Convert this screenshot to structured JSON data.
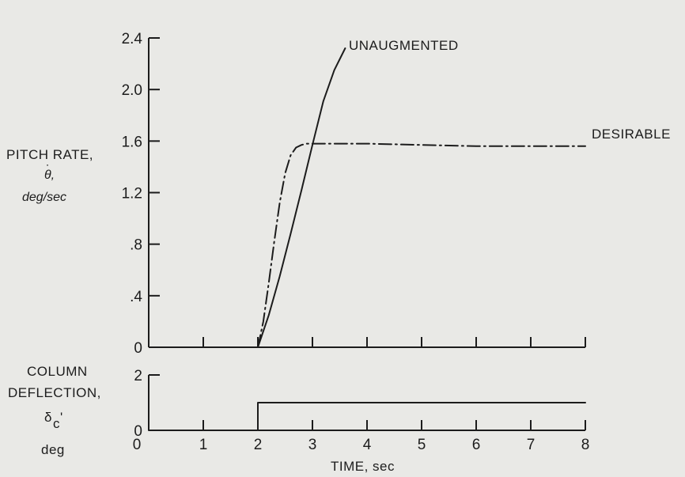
{
  "chart_data": [
    {
      "type": "line",
      "ylabel_lines": [
        "PITCH RATE,",
        "θ,",
        "deg/sec"
      ],
      "ylabel_dot": "˙",
      "xlim": [
        0,
        8
      ],
      "ylim": [
        0,
        2.4
      ],
      "y_ticks": [
        0,
        0.4,
        0.8,
        1.2,
        1.6,
        2.0,
        2.4
      ],
      "y_tick_labels": [
        "0",
        ".4",
        ".8",
        "1.2",
        "1.6",
        "2.0",
        "2.4"
      ],
      "x_ticks": [
        1,
        2,
        3,
        4,
        5,
        6,
        7,
        8
      ],
      "series": [
        {
          "name": "UNAUGMENTED",
          "style": "solid",
          "x": [
            2.0,
            2.2,
            2.4,
            2.6,
            2.8,
            3.0,
            3.2,
            3.4,
            3.6
          ],
          "y": [
            0.0,
            0.25,
            0.55,
            0.88,
            1.22,
            1.57,
            1.91,
            2.15,
            2.32
          ]
        },
        {
          "name": "DESIRABLE",
          "style": "dash-dot",
          "x": [
            2.0,
            2.1,
            2.2,
            2.3,
            2.4,
            2.5,
            2.6,
            2.7,
            2.8,
            2.9,
            3.0,
            3.5,
            4.0,
            5.0,
            6.0,
            7.0,
            8.0
          ],
          "y": [
            0.0,
            0.2,
            0.5,
            0.82,
            1.12,
            1.35,
            1.49,
            1.55,
            1.57,
            1.58,
            1.58,
            1.58,
            1.58,
            1.57,
            1.56,
            1.56,
            1.56
          ]
        }
      ]
    },
    {
      "type": "line",
      "ylabel_lines": [
        "COLUMN",
        "DEFLECTION,",
        "δ",
        "c",
        "'",
        "deg"
      ],
      "xlabel": "TIME, sec",
      "xlim": [
        0,
        8
      ],
      "ylim": [
        0,
        2
      ],
      "y_ticks": [
        0,
        2
      ],
      "y_tick_labels": [
        "0",
        "2"
      ],
      "x_ticks": [
        0,
        1,
        2,
        3,
        4,
        5,
        6,
        7,
        8
      ],
      "x_tick_labels": [
        "0",
        "1",
        "2",
        "3",
        "4",
        "5",
        "6",
        "7",
        "8"
      ],
      "series": [
        {
          "name": "",
          "style": "solid",
          "x": [
            0,
            2,
            2,
            8
          ],
          "y": [
            0,
            0,
            1,
            1
          ]
        }
      ]
    }
  ]
}
